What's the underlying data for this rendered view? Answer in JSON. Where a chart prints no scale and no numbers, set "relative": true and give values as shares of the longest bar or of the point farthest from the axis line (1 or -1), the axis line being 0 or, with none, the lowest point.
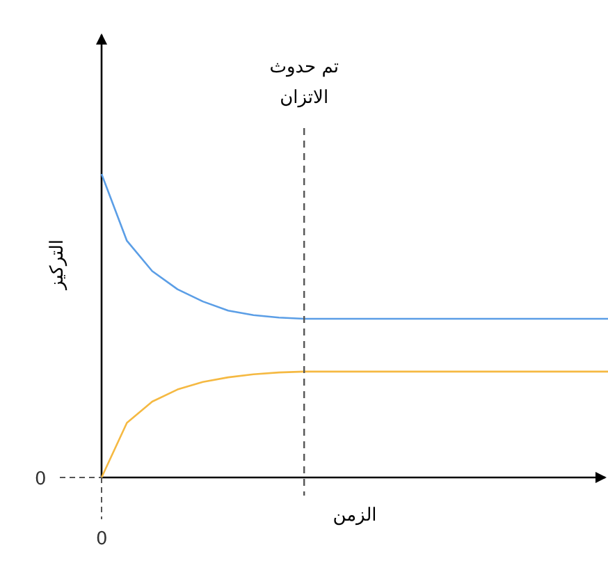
{
  "chart_data": {
    "type": "line",
    "relative": true,
    "xlabel": "الزمن",
    "ylabel": "التركيز",
    "categories": [
      null,
      null,
      null,
      null,
      null,
      null,
      null,
      null,
      null,
      null,
      null,
      null,
      null,
      null,
      null,
      null,
      null,
      null,
      null,
      null,
      null
    ],
    "series": [
      {
        "color": "#5b9ee6",
        "values": [
          1,
          0.78,
          0.68,
          0.62,
          0.58,
          0.55,
          0.535,
          0.527,
          0.523,
          0.523,
          0.523,
          0.523,
          0.523,
          0.523,
          0.523,
          0.523,
          0.523,
          0.523,
          0.523,
          0.523,
          0.523
        ]
      },
      {
        "color": "#f5b942",
        "values": [
          0,
          0.18,
          0.25,
          0.29,
          0.315,
          0.33,
          0.34,
          0.346,
          0.349,
          0.349,
          0.349,
          0.349,
          0.349,
          0.349,
          0.349,
          0.349,
          0.349,
          0.349,
          0.349,
          0.349,
          0.349
        ]
      }
    ],
    "annotations": [
      "تم حدوث الاتزان",
      "0",
      "0"
    ],
    "marker": "none",
    "line_style": "solid"
  }
}
